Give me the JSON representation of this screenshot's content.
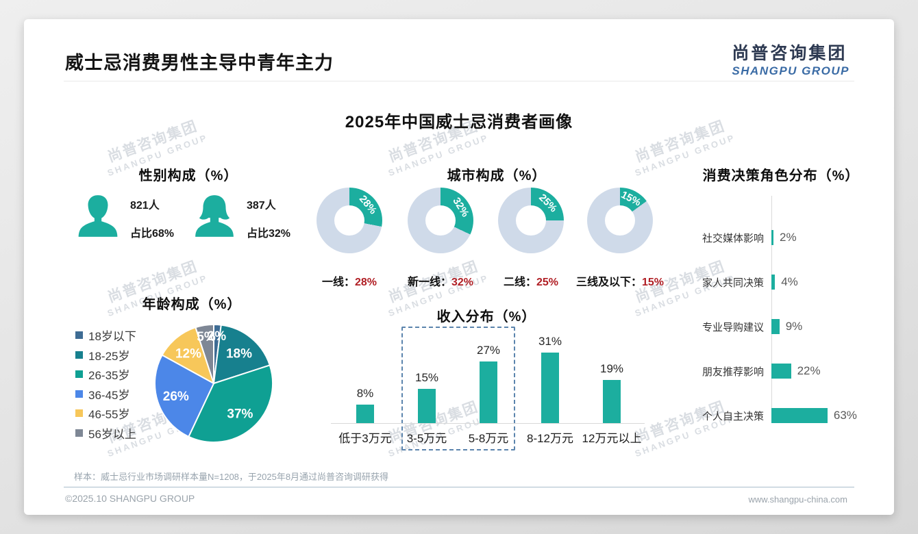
{
  "page": {
    "header_title": "威士忌消费男性主导中青年主力",
    "logo_cn": "尚普咨询集团",
    "logo_en": "SHANGPU GROUP",
    "main_title": "2025年中国威士忌消费者画像",
    "sample_note": "样本：威士忌行业市场调研样本量N=1208，于2025年8月通过尚普咨询调研获得",
    "footer_left": "©2025.10 SHANGPU GROUP",
    "footer_right": "www.shangpu-china.com",
    "watermark_line1": "尚普咨询集团",
    "watermark_line2": "SHANGPU GROUP"
  },
  "colors": {
    "teal": "#1CAE9F",
    "donut_track": "#CFDAE9",
    "red": "#B01E24",
    "axis": "#D9D9D9",
    "highlight_dash": "#5B84AD"
  },
  "chart_data": [
    {
      "id": "gender",
      "type": "table",
      "title": "性别构成（%）",
      "rows": [
        {
          "icon": "male-icon",
          "count": "821人",
          "share": "占比68%"
        },
        {
          "icon": "female-icon",
          "count": "387人",
          "share": "占比32%"
        }
      ]
    },
    {
      "id": "city",
      "type": "pie",
      "variant": "donut-small-multiples",
      "title": "城市构成（%）",
      "categories": [
        "一线",
        "新一线",
        "二线",
        "三线及以下"
      ],
      "values": [
        28,
        32,
        25,
        15
      ],
      "value_suffix": "%",
      "layout": "four donuts, teal segment clockwise from 12 o'clock on light track, category label with red value below each"
    },
    {
      "id": "decision",
      "type": "bar",
      "orientation": "horizontal",
      "title": "消费决策角色分布（%）",
      "categories": [
        "社交媒体影响",
        "家人共同决策",
        "专业导购建议",
        "朋友推荐影响",
        "个人自主决策"
      ],
      "values": [
        2,
        4,
        9,
        22,
        63
      ],
      "xlim": [
        0,
        70
      ],
      "value_suffix": "%"
    },
    {
      "id": "age",
      "type": "pie",
      "title": "年龄构成（%）",
      "categories": [
        "18岁以下",
        "18-25岁",
        "26-35岁",
        "36-45岁",
        "46-55岁",
        "56岁以上"
      ],
      "values": [
        2,
        18,
        37,
        26,
        12,
        5
      ],
      "slice_colors": [
        "#3E6C94",
        "#17808E",
        "#0FA093",
        "#4C87E8",
        "#F7C75A",
        "#7E8795"
      ],
      "start": "12 o'clock, clockwise",
      "legend_position": "left",
      "value_suffix": "%"
    },
    {
      "id": "income",
      "type": "bar",
      "orientation": "vertical",
      "title": "收入分布（%）",
      "categories": [
        "低于3万元",
        "3-5万元",
        "5-8万元",
        "8-12万元",
        "12万元以上"
      ],
      "values": [
        8,
        15,
        27,
        31,
        19
      ],
      "ylim": [
        0,
        35
      ],
      "value_suffix": "%",
      "highlight_box_categories": [
        "3-5万元",
        "5-8万元"
      ]
    }
  ]
}
